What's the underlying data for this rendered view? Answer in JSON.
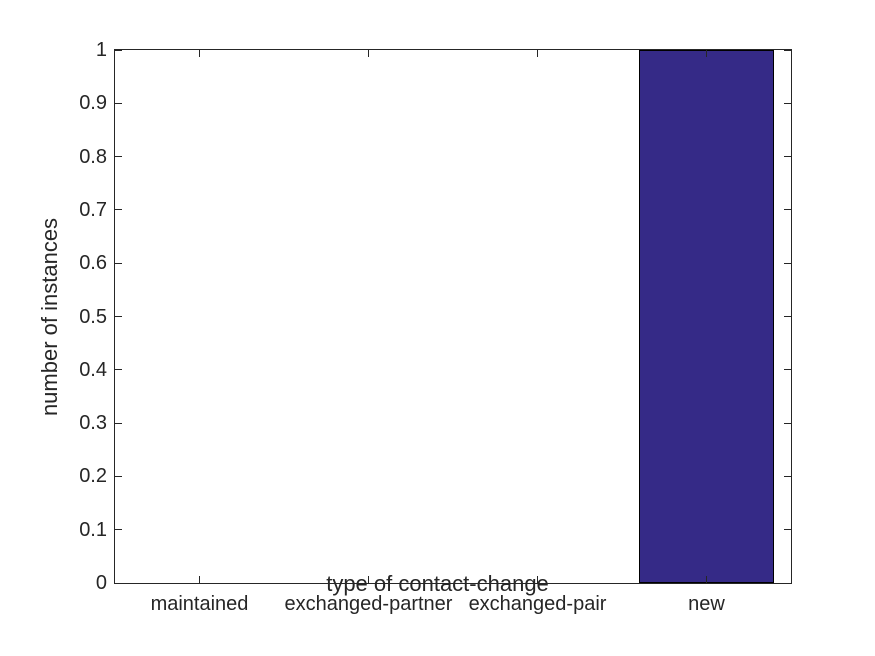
{
  "chart_data": {
    "type": "bar",
    "title": "",
    "xlabel": "type of contact-change",
    "ylabel": "number of instances",
    "categories": [
      "maintained",
      "exchanged-partner",
      "exchanged-pair",
      "new"
    ],
    "values": [
      0,
      0,
      0,
      1
    ],
    "ylim": [
      0,
      1
    ],
    "yticks": [
      0,
      0.1,
      0.2,
      0.3,
      0.4,
      0.5,
      0.6,
      0.7,
      0.8,
      0.9,
      1
    ],
    "ytick_labels": [
      "0",
      "0.1",
      "0.2",
      "0.3",
      "0.4",
      "0.5",
      "0.6",
      "0.7",
      "0.8",
      "0.9",
      "1"
    ],
    "bar_width_fraction": 0.8,
    "grid": false,
    "legend": null,
    "box": true,
    "tick_direction": "in",
    "colors": {
      "bar_fill": "#352A87",
      "bar_edge": "#000000",
      "axis": "#262626",
      "text": "#262626",
      "background": "#FFFFFF"
    }
  }
}
